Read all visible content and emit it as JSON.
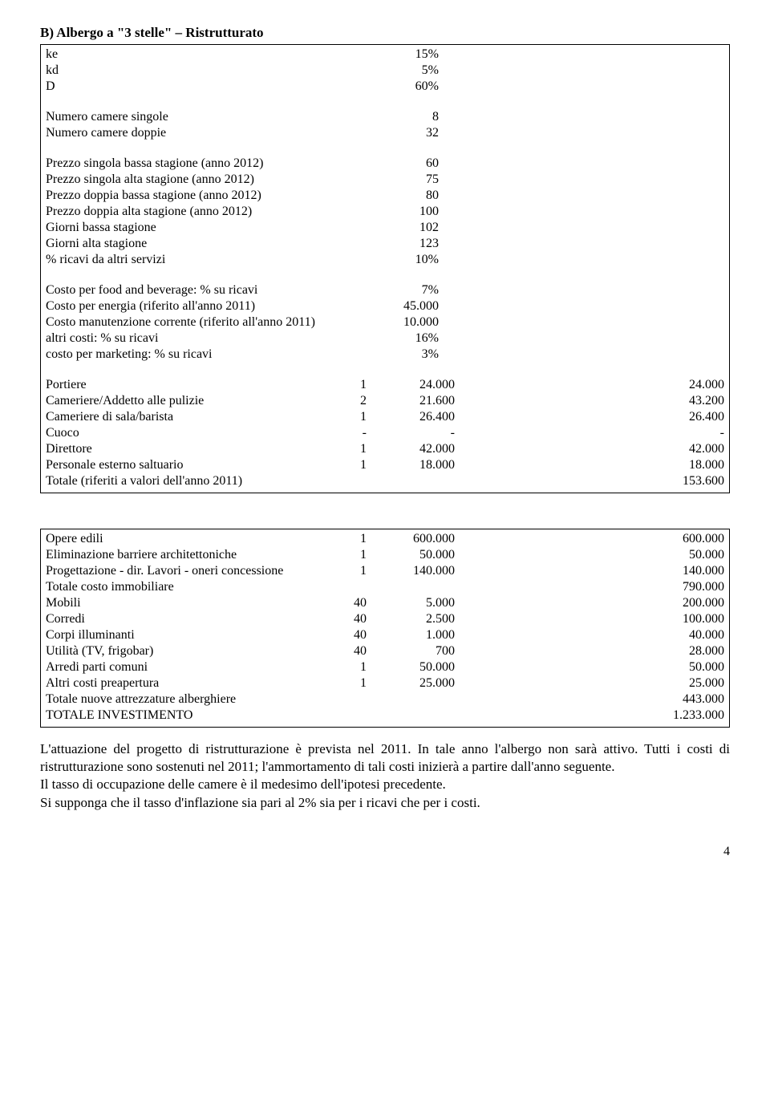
{
  "title": "B) Albergo a \"3 stelle\" – Ristrutturato",
  "params": [
    {
      "label": "ke",
      "value": "15%"
    },
    {
      "label": "kd",
      "value": "5%"
    },
    {
      "label": "D",
      "value": "60%"
    }
  ],
  "rooms": [
    {
      "label": "Numero camere singole",
      "value": "8"
    },
    {
      "label": "Numero camere doppie",
      "value": "32"
    }
  ],
  "prices": [
    {
      "label": "Prezzo singola bassa stagione (anno 2012)",
      "value": "60"
    },
    {
      "label": "Prezzo singola alta stagione (anno 2012)",
      "value": "75"
    },
    {
      "label": "Prezzo doppia bassa stagione (anno 2012)",
      "value": "80"
    },
    {
      "label": "Prezzo doppia alta stagione (anno 2012)",
      "value": "100"
    },
    {
      "label": "Giorni bassa stagione",
      "value": "102"
    },
    {
      "label": "Giorni alta stagione",
      "value": "123"
    },
    {
      "label": "% ricavi da altri servizi",
      "value": "10%"
    }
  ],
  "costs": [
    {
      "label": "Costo per food and beverage: % su ricavi",
      "value": "7%"
    },
    {
      "label": "Costo per energia (riferito all'anno 2011)",
      "value": "45.000"
    },
    {
      "label": "Costo manutenzione corrente (riferito all'anno 2011)",
      "value": "10.000"
    },
    {
      "label": "altri costi: % su ricavi",
      "value": "16%"
    },
    {
      "label": "costo per marketing: % su ricavi",
      "value": "3%"
    }
  ],
  "staff": [
    {
      "label": "Portiere",
      "q": "1",
      "unit": "24.000",
      "total": "24.000"
    },
    {
      "label": "Cameriere/Addetto alle pulizie",
      "q": "2",
      "unit": "21.600",
      "total": "43.200"
    },
    {
      "label": "Cameriere di sala/barista",
      "q": "1",
      "unit": "26.400",
      "total": "26.400"
    },
    {
      "label": "Cuoco",
      "q": "-",
      "unit": "-",
      "total": "-"
    },
    {
      "label": "Direttore",
      "q": "1",
      "unit": "42.000",
      "total": "42.000"
    },
    {
      "label": "Personale esterno saltuario",
      "q": "1",
      "unit": "18.000",
      "total": "18.000"
    },
    {
      "label": "Totale (riferiti a valori dell'anno 2011)",
      "q": "",
      "unit": "",
      "total": "153.600"
    }
  ],
  "investment": [
    {
      "label": "Opere edili",
      "q": "1",
      "unit": "600.000",
      "total": "600.000"
    },
    {
      "label": "Eliminazione barriere architettoniche",
      "q": "1",
      "unit": "50.000",
      "total": "50.000"
    },
    {
      "label": "Progettazione - dir. Lavori - oneri concessione",
      "q": "1",
      "unit": "140.000",
      "total": "140.000"
    },
    {
      "label": "Totale costo immobiliare",
      "q": "",
      "unit": "",
      "total": "790.000"
    },
    {
      "label": "Mobili",
      "q": "40",
      "unit": "5.000",
      "total": "200.000"
    },
    {
      "label": "Corredi",
      "q": "40",
      "unit": "2.500",
      "total": "100.000"
    },
    {
      "label": "Corpi illuminanti",
      "q": "40",
      "unit": "1.000",
      "total": "40.000"
    },
    {
      "label": "Utilità (TV, frigobar)",
      "q": "40",
      "unit": "700",
      "total": "28.000"
    },
    {
      "label": "Arredi parti comuni",
      "q": "1",
      "unit": "50.000",
      "total": "50.000"
    },
    {
      "label": "Altri costi preapertura",
      "q": "1",
      "unit": "25.000",
      "total": "25.000"
    },
    {
      "label": "Totale nuove attrezzature alberghiere",
      "q": "",
      "unit": "",
      "total": "443.000"
    },
    {
      "label": "TOTALE INVESTIMENTO",
      "q": "",
      "unit": "",
      "total": "1.233.000"
    }
  ],
  "para1": "L'attuazione del progetto di ristrutturazione è prevista nel 2011. In tale anno l'albergo non sarà attivo. Tutti i costi di ristrutturazione sono sostenuti nel 2011; l'ammortamento di tali costi inizierà a partire dall'anno seguente.",
  "para2": "Il tasso di occupazione delle camere è il medesimo dell'ipotesi precedente.",
  "para3": "Si supponga che il tasso d'inflazione sia pari al 2% sia per i ricavi che per i costi.",
  "pagenum": "4"
}
